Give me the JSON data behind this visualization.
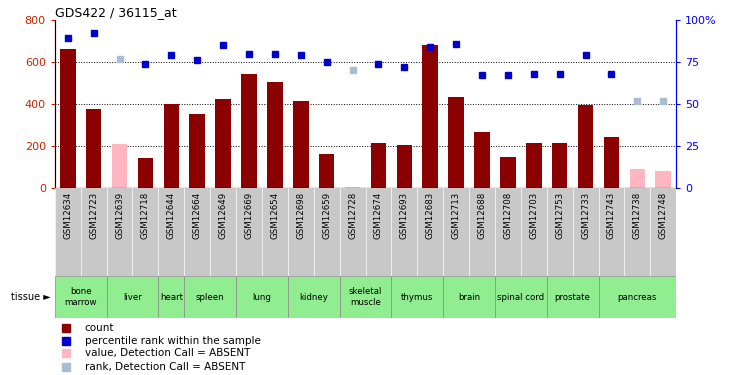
{
  "title": "GDS422 / 36115_at",
  "samples": [
    "GSM12634",
    "GSM12723",
    "GSM12639",
    "GSM12718",
    "GSM12644",
    "GSM12664",
    "GSM12649",
    "GSM12669",
    "GSM12654",
    "GSM12698",
    "GSM12659",
    "GSM12728",
    "GSM12674",
    "GSM12693",
    "GSM12683",
    "GSM12713",
    "GSM12688",
    "GSM12708",
    "GSM12703",
    "GSM12753",
    "GSM12733",
    "GSM12743",
    "GSM12738",
    "GSM12748"
  ],
  "bar_values": [
    660,
    375,
    210,
    145,
    400,
    350,
    425,
    545,
    505,
    415,
    160,
    5,
    215,
    205,
    680,
    435,
    265,
    150,
    215,
    215,
    395,
    245,
    90,
    80
  ],
  "bar_absent": [
    false,
    false,
    true,
    false,
    false,
    false,
    false,
    false,
    false,
    false,
    false,
    true,
    false,
    false,
    false,
    false,
    false,
    false,
    false,
    false,
    false,
    false,
    true,
    true
  ],
  "rank_values": [
    89,
    92,
    77,
    74,
    79,
    76,
    85,
    80,
    80,
    79,
    75,
    70,
    74,
    72,
    84,
    86,
    67,
    67,
    68,
    68,
    79,
    68,
    52,
    52
  ],
  "rank_absent": [
    false,
    false,
    true,
    false,
    false,
    false,
    false,
    false,
    false,
    false,
    false,
    true,
    false,
    false,
    false,
    false,
    false,
    false,
    false,
    false,
    false,
    false,
    true,
    true
  ],
  "tissues": [
    {
      "label": "bone\nmarrow",
      "start": 0,
      "end": 2
    },
    {
      "label": "liver",
      "start": 2,
      "end": 4
    },
    {
      "label": "heart",
      "start": 4,
      "end": 5
    },
    {
      "label": "spleen",
      "start": 5,
      "end": 7
    },
    {
      "label": "lung",
      "start": 7,
      "end": 9
    },
    {
      "label": "kidney",
      "start": 9,
      "end": 11
    },
    {
      "label": "skeletal\nmuscle",
      "start": 11,
      "end": 13
    },
    {
      "label": "thymus",
      "start": 13,
      "end": 15
    },
    {
      "label": "brain",
      "start": 15,
      "end": 17
    },
    {
      "label": "spinal cord",
      "start": 17,
      "end": 19
    },
    {
      "label": "prostate",
      "start": 19,
      "end": 21
    },
    {
      "label": "pancreas",
      "start": 21,
      "end": 24
    }
  ],
  "ylim_left": [
    0,
    800
  ],
  "ylim_right": [
    0,
    100
  ],
  "yticks_left": [
    0,
    200,
    400,
    600,
    800
  ],
  "yticks_right": [
    0,
    25,
    50,
    75,
    100
  ],
  "bar_color": "#8B0000",
  "bar_absent_color": "#FFB6C1",
  "rank_color": "#0000CC",
  "rank_absent_color": "#AABBD4",
  "dotted_lines": [
    200,
    400,
    600
  ],
  "tissue_color": "#90EE90",
  "sample_bg_color": "#C8C8C8",
  "legend_items": [
    {
      "label": "count",
      "color": "#8B0000"
    },
    {
      "label": "percentile rank within the sample",
      "color": "#0000CC"
    },
    {
      "label": "value, Detection Call = ABSENT",
      "color": "#FFB6C1"
    },
    {
      "label": "rank, Detection Call = ABSENT",
      "color": "#AABBD4"
    }
  ]
}
